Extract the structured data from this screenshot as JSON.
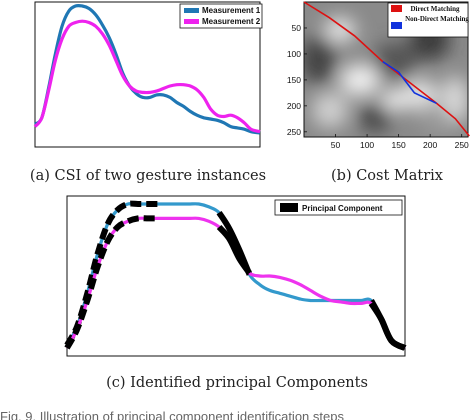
{
  "figure_caption": "Fig. 9. Illustration of principal component identification steps",
  "chart_data": [
    {
      "type": "line",
      "caption": "(a) CSI of two gesture instances",
      "x": [
        0,
        0.03,
        0.06,
        0.09,
        0.12,
        0.15,
        0.18,
        0.21,
        0.24,
        0.27,
        0.3,
        0.33,
        0.36,
        0.39,
        0.42,
        0.45,
        0.48,
        0.51,
        0.54,
        0.57,
        0.6,
        0.63,
        0.66,
        0.69,
        0.72,
        0.75,
        0.78,
        0.81,
        0.84,
        0.87,
        0.9,
        0.93,
        0.96,
        1.0
      ],
      "series": [
        {
          "name": "Measurement 1",
          "color": "#1f77b4",
          "values": [
            0.07,
            0.12,
            0.35,
            0.62,
            0.84,
            0.96,
            1.0,
            1.0,
            0.98,
            0.93,
            0.85,
            0.75,
            0.62,
            0.47,
            0.37,
            0.31,
            0.28,
            0.28,
            0.3,
            0.3,
            0.28,
            0.24,
            0.21,
            0.17,
            0.14,
            0.12,
            0.11,
            0.1,
            0.08,
            0.05,
            0.04,
            0.03,
            0.01,
            0.0
          ]
        },
        {
          "name": "Measurement 2",
          "color": "#ee22ee",
          "values": [
            0.05,
            0.12,
            0.33,
            0.57,
            0.74,
            0.84,
            0.87,
            0.88,
            0.87,
            0.84,
            0.78,
            0.69,
            0.57,
            0.45,
            0.37,
            0.33,
            0.32,
            0.32,
            0.33,
            0.35,
            0.37,
            0.38,
            0.38,
            0.37,
            0.34,
            0.28,
            0.19,
            0.14,
            0.13,
            0.14,
            0.12,
            0.08,
            0.03,
            0.01
          ]
        }
      ]
    },
    {
      "type": "heatmap",
      "caption": "(b) Cost Matrix",
      "xticks": [
        50,
        100,
        150,
        200,
        250
      ],
      "yticks": [
        50,
        100,
        150,
        200,
        250
      ],
      "xlim": [
        0,
        260
      ],
      "ylim": [
        0,
        260
      ],
      "path_direct": {
        "name": "Direct Matching",
        "color": "#dd1111",
        "x": [
          0,
          40,
          80,
          125,
          210,
          240,
          262
        ],
        "y": [
          0,
          30,
          65,
          115,
          195,
          225,
          258
        ]
      },
      "path_nondirect": {
        "name": "Non-Direct Matching",
        "color": "#1133dd",
        "x": [
          125,
          150,
          175,
          210
        ],
        "y": [
          115,
          135,
          175,
          195
        ]
      }
    },
    {
      "type": "line",
      "caption": "(c) Identified principal Components",
      "legend": "Principal Component",
      "principal_ranges": [
        [
          0,
          0.28
        ],
        [
          0.45,
          0.55
        ],
        [
          0.9,
          1.0
        ]
      ],
      "x": [
        0,
        0.03,
        0.06,
        0.09,
        0.12,
        0.15,
        0.18,
        0.21,
        0.24,
        0.27,
        0.3,
        0.33,
        0.36,
        0.39,
        0.42,
        0.45,
        0.48,
        0.51,
        0.54,
        0.57,
        0.6,
        0.63,
        0.66,
        0.69,
        0.72,
        0.75,
        0.78,
        0.81,
        0.84,
        0.87,
        0.9,
        0.93,
        0.96,
        1.0
      ],
      "series": [
        {
          "name": "Measurement 1",
          "color": "#3399cc",
          "values": [
            0.02,
            0.15,
            0.38,
            0.65,
            0.86,
            0.96,
            1.0,
            1.0,
            1.0,
            1.0,
            1.0,
            1.0,
            1.0,
            1.0,
            0.98,
            0.94,
            0.83,
            0.68,
            0.51,
            0.44,
            0.4,
            0.38,
            0.36,
            0.34,
            0.33,
            0.33,
            0.33,
            0.33,
            0.33,
            0.33,
            0.33,
            0.2,
            0.05,
            0.0
          ]
        },
        {
          "name": "Measurement 2",
          "color": "#ee33ee",
          "values": [
            0.0,
            0.13,
            0.33,
            0.56,
            0.74,
            0.84,
            0.88,
            0.9,
            0.9,
            0.9,
            0.9,
            0.9,
            0.9,
            0.9,
            0.88,
            0.84,
            0.76,
            0.62,
            0.52,
            0.5,
            0.5,
            0.49,
            0.47,
            0.44,
            0.4,
            0.36,
            0.33,
            0.32,
            0.31,
            0.31,
            0.31,
            0.2,
            0.05,
            0.0
          ]
        }
      ]
    }
  ]
}
